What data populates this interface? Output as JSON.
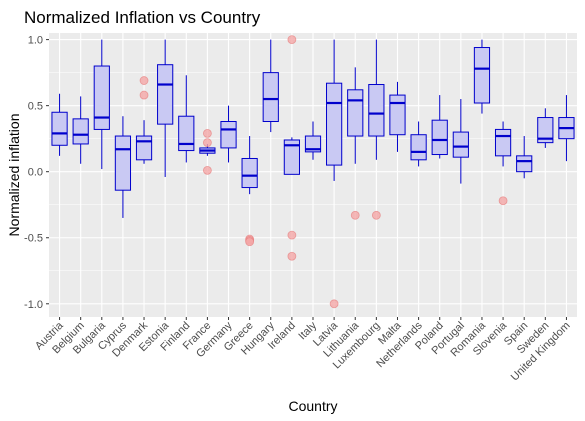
{
  "chart_data": {
    "type": "boxplot",
    "title": "Normalized Inflation vs Country",
    "xlabel": "Country",
    "ylabel": "Normalized inflation",
    "ylim": [
      -1.1,
      1.05
    ],
    "yticks": [
      -1.0,
      -0.5,
      0.0,
      0.5,
      1.0
    ],
    "ytick_labels": [
      "-1.0",
      "-0.5",
      "0.0",
      "0.5",
      "1.0"
    ],
    "grid": true,
    "legend": "none",
    "colors": {
      "panel_bg": "#ebebeb",
      "grid": "#ffffff",
      "box_fill": "#c9c9f3",
      "box_line": "#0000cc",
      "median": "#0000cc",
      "outlier": "#f4a6a6",
      "outlier_edge": "#e57373"
    },
    "categories": [
      "Austria",
      "Belgium",
      "Bulgaria",
      "Cyprus",
      "Denmark",
      "Estonia",
      "Finland",
      "France",
      "Germany",
      "Greece",
      "Hungary",
      "Ireland",
      "Italy",
      "Latvia",
      "Lithuania",
      "Luxembourg",
      "Malta",
      "Netherlands",
      "Poland",
      "Portugal",
      "Romania",
      "Slovenia",
      "Spain",
      "Sweden",
      "United Kingdom"
    ],
    "boxes": [
      {
        "low": 0.12,
        "q1": 0.2,
        "median": 0.29,
        "q3": 0.45,
        "high": 0.59,
        "outliers": []
      },
      {
        "low": 0.06,
        "q1": 0.21,
        "median": 0.28,
        "q3": 0.4,
        "high": 0.57,
        "outliers": []
      },
      {
        "low": 0.02,
        "q1": 0.32,
        "median": 0.41,
        "q3": 0.8,
        "high": 1.0,
        "outliers": []
      },
      {
        "low": -0.35,
        "q1": -0.14,
        "median": 0.17,
        "q3": 0.27,
        "high": 0.42,
        "outliers": []
      },
      {
        "low": 0.06,
        "q1": 0.09,
        "median": 0.23,
        "q3": 0.27,
        "high": 0.39,
        "outliers": [
          0.69,
          0.58
        ]
      },
      {
        "low": -0.04,
        "q1": 0.36,
        "median": 0.66,
        "q3": 0.81,
        "high": 1.0,
        "outliers": []
      },
      {
        "low": 0.07,
        "q1": 0.16,
        "median": 0.21,
        "q3": 0.42,
        "high": 0.73,
        "outliers": []
      },
      {
        "low": 0.12,
        "q1": 0.14,
        "median": 0.16,
        "q3": 0.18,
        "high": 0.21,
        "outliers": [
          0.29,
          0.22,
          0.01
        ]
      },
      {
        "low": 0.07,
        "q1": 0.18,
        "median": 0.32,
        "q3": 0.38,
        "high": 0.5,
        "outliers": []
      },
      {
        "low": -0.17,
        "q1": -0.12,
        "median": -0.03,
        "q3": 0.1,
        "high": 0.27,
        "outliers": [
          -0.51,
          -0.52,
          -0.53
        ]
      },
      {
        "low": 0.3,
        "q1": 0.38,
        "median": 0.55,
        "q3": 0.75,
        "high": 1.0,
        "outliers": []
      },
      {
        "low": -0.02,
        "q1": -0.02,
        "median": 0.2,
        "q3": 0.24,
        "high": 0.26,
        "outliers": [
          1.0,
          -0.48,
          -0.64
        ]
      },
      {
        "low": 0.09,
        "q1": 0.15,
        "median": 0.17,
        "q3": 0.27,
        "high": 0.38,
        "outliers": []
      },
      {
        "low": -0.07,
        "q1": 0.05,
        "median": 0.52,
        "q3": 0.67,
        "high": 1.0,
        "outliers": [
          -1.0
        ]
      },
      {
        "low": 0.06,
        "q1": 0.27,
        "median": 0.54,
        "q3": 0.62,
        "high": 0.79,
        "outliers": [
          -0.33
        ]
      },
      {
        "low": 0.09,
        "q1": 0.27,
        "median": 0.44,
        "q3": 0.66,
        "high": 1.0,
        "outliers": [
          -0.33
        ]
      },
      {
        "low": 0.15,
        "q1": 0.28,
        "median": 0.52,
        "q3": 0.58,
        "high": 0.68,
        "outliers": []
      },
      {
        "low": 0.04,
        "q1": 0.09,
        "median": 0.15,
        "q3": 0.28,
        "high": 0.38,
        "outliers": []
      },
      {
        "low": 0.1,
        "q1": 0.13,
        "median": 0.24,
        "q3": 0.39,
        "high": 0.58,
        "outliers": []
      },
      {
        "low": -0.09,
        "q1": 0.11,
        "median": 0.19,
        "q3": 0.3,
        "high": 0.55,
        "outliers": []
      },
      {
        "low": 0.44,
        "q1": 0.52,
        "median": 0.78,
        "q3": 0.94,
        "high": 1.0,
        "outliers": []
      },
      {
        "low": 0.04,
        "q1": 0.12,
        "median": 0.27,
        "q3": 0.32,
        "high": 0.38,
        "outliers": [
          -0.22
        ]
      },
      {
        "low": -0.05,
        "q1": 0.0,
        "median": 0.08,
        "q3": 0.12,
        "high": 0.27,
        "outliers": []
      },
      {
        "low": 0.18,
        "q1": 0.22,
        "median": 0.25,
        "q3": 0.41,
        "high": 0.48,
        "outliers": []
      },
      {
        "low": 0.08,
        "q1": 0.25,
        "median": 0.33,
        "q3": 0.41,
        "high": 0.58,
        "outliers": []
      }
    ]
  }
}
